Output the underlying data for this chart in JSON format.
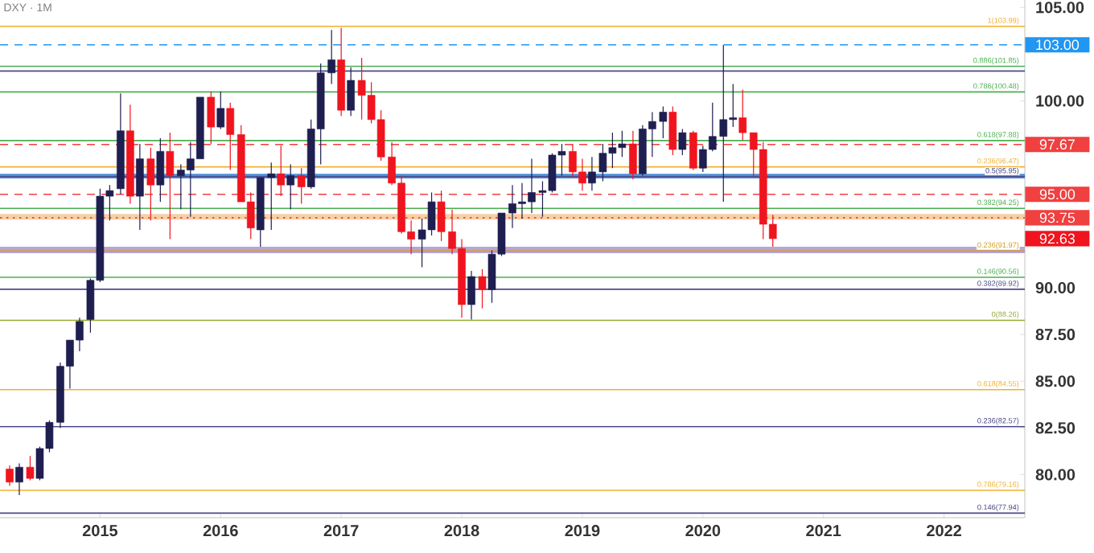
{
  "chart_data": {
    "type": "candlestick",
    "title": "DXY · 1M",
    "x": [
      "2014-04",
      "2014-05",
      "2014-06",
      "2014-07",
      "2014-08",
      "2014-09",
      "2014-10",
      "2014-11",
      "2014-12",
      "2015-01",
      "2015-02",
      "2015-03",
      "2015-04",
      "2015-05",
      "2015-06",
      "2015-07",
      "2015-08",
      "2015-09",
      "2015-10",
      "2015-11",
      "2015-12",
      "2016-01",
      "2016-02",
      "2016-03",
      "2016-04",
      "2016-05",
      "2016-06",
      "2016-07",
      "2016-08",
      "2016-09",
      "2016-10",
      "2016-11",
      "2016-12",
      "2017-01",
      "2017-02",
      "2017-03",
      "2017-04",
      "2017-05",
      "2017-06",
      "2017-07",
      "2017-08",
      "2017-09",
      "2017-10",
      "2017-11",
      "2017-12",
      "2018-01",
      "2018-02",
      "2018-03",
      "2018-04",
      "2018-05",
      "2018-06",
      "2018-07",
      "2018-08",
      "2018-09",
      "2018-10",
      "2018-11",
      "2018-12",
      "2019-01",
      "2019-02",
      "2019-03",
      "2019-04",
      "2019-05",
      "2019-06",
      "2019-07",
      "2019-08",
      "2019-09",
      "2019-10",
      "2019-11",
      "2019-12",
      "2020-01",
      "2020-02",
      "2020-03",
      "2020-04",
      "2020-05",
      "2020-06",
      "2020-07",
      "2020-08"
    ],
    "ohlc": [
      [
        80.3,
        80.5,
        79.4,
        79.6
      ],
      [
        79.6,
        80.6,
        78.9,
        80.4
      ],
      [
        80.4,
        81.0,
        79.7,
        79.8
      ],
      [
        79.8,
        81.5,
        79.7,
        81.4
      ],
      [
        81.4,
        82.9,
        81.2,
        82.8
      ],
      [
        82.8,
        86.0,
        82.5,
        85.8
      ],
      [
        85.8,
        87.2,
        84.6,
        87.2
      ],
      [
        87.2,
        88.4,
        86.6,
        88.2
      ],
      [
        88.3,
        90.5,
        87.6,
        90.4
      ],
      [
        90.4,
        95.3,
        90.3,
        94.9
      ],
      [
        94.9,
        95.5,
        93.6,
        95.2
      ],
      [
        95.3,
        100.4,
        95.0,
        98.4
      ],
      [
        98.4,
        99.8,
        94.5,
        94.9
      ],
      [
        94.9,
        97.7,
        93.1,
        96.9
      ],
      [
        96.9,
        97.5,
        93.6,
        95.5
      ],
      [
        95.5,
        98.0,
        94.6,
        97.3
      ],
      [
        97.3,
        98.3,
        92.6,
        96.0
      ],
      [
        96.0,
        96.6,
        94.2,
        96.3
      ],
      [
        96.3,
        97.8,
        93.8,
        96.9
      ],
      [
        96.9,
        100.2,
        96.9,
        100.2
      ],
      [
        100.2,
        100.5,
        97.7,
        98.6
      ],
      [
        98.6,
        100.5,
        98.5,
        99.6
      ],
      [
        99.6,
        99.9,
        96.3,
        98.2
      ],
      [
        98.2,
        98.7,
        94.6,
        94.6
      ],
      [
        94.6,
        95.1,
        92.6,
        93.2
      ],
      [
        93.1,
        95.9,
        92.2,
        95.9
      ],
      [
        95.9,
        96.7,
        93.1,
        96.1
      ],
      [
        96.1,
        97.6,
        94.9,
        95.5
      ],
      [
        95.5,
        96.6,
        94.2,
        96.0
      ],
      [
        96.0,
        96.4,
        94.5,
        95.4
      ],
      [
        95.4,
        99.0,
        95.3,
        98.5
      ],
      [
        98.5,
        102.0,
        96.6,
        101.5
      ],
      [
        101.5,
        103.8,
        100.9,
        102.2
      ],
      [
        102.2,
        103.9,
        99.2,
        99.5
      ],
      [
        99.5,
        101.8,
        99.2,
        101.1
      ],
      [
        101.1,
        102.3,
        99.0,
        100.3
      ],
      [
        100.3,
        101.0,
        98.8,
        99.0
      ],
      [
        99.0,
        99.5,
        96.8,
        97.0
      ],
      [
        97.0,
        97.8,
        95.5,
        95.6
      ],
      [
        95.6,
        96.0,
        92.9,
        93.0
      ],
      [
        93.0,
        93.6,
        91.8,
        92.6
      ],
      [
        92.6,
        93.7,
        91.1,
        93.1
      ],
      [
        93.1,
        95.1,
        92.8,
        94.6
      ],
      [
        94.6,
        95.2,
        92.5,
        93.0
      ],
      [
        93.0,
        94.2,
        91.8,
        92.1
      ],
      [
        92.1,
        92.6,
        88.4,
        89.1
      ],
      [
        89.1,
        90.9,
        88.3,
        90.6
      ],
      [
        90.6,
        91.0,
        88.9,
        89.9
      ],
      [
        89.9,
        92.0,
        89.2,
        91.8
      ],
      [
        91.8,
        94.0,
        91.7,
        94.0
      ],
      [
        94.0,
        95.5,
        93.2,
        94.5
      ],
      [
        94.5,
        95.6,
        93.7,
        94.6
      ],
      [
        94.6,
        96.9,
        94.0,
        95.1
      ],
      [
        95.1,
        95.7,
        93.8,
        95.2
      ],
      [
        95.2,
        97.2,
        95.1,
        97.1
      ],
      [
        97.1,
        97.7,
        96.0,
        97.3
      ],
      [
        97.3,
        97.7,
        95.9,
        96.2
      ],
      [
        96.2,
        96.9,
        95.2,
        95.6
      ],
      [
        95.6,
        97.0,
        95.2,
        96.2
      ],
      [
        96.2,
        97.7,
        95.7,
        97.2
      ],
      [
        97.2,
        98.3,
        96.4,
        97.5
      ],
      [
        97.5,
        98.4,
        97.0,
        97.7
      ],
      [
        97.7,
        98.4,
        95.8,
        96.1
      ],
      [
        96.1,
        98.7,
        96.0,
        98.5
      ],
      [
        98.5,
        99.4,
        97.0,
        98.9
      ],
      [
        98.9,
        99.7,
        98.0,
        99.4
      ],
      [
        99.4,
        99.7,
        97.1,
        97.4
      ],
      [
        97.4,
        98.5,
        97.1,
        98.3
      ],
      [
        98.3,
        98.4,
        96.3,
        96.4
      ],
      [
        96.4,
        97.6,
        96.2,
        97.4
      ],
      [
        97.4,
        99.9,
        97.3,
        98.1
      ],
      [
        98.1,
        103.0,
        94.6,
        99.0
      ],
      [
        99.0,
        100.9,
        98.6,
        99.1
      ],
      [
        99.1,
        100.6,
        97.9,
        98.3
      ],
      [
        98.3,
        98.3,
        95.9,
        97.4
      ],
      [
        97.4,
        97.8,
        92.6,
        93.4
      ],
      [
        93.4,
        93.9,
        92.2,
        92.63
      ]
    ],
    "xlim": [
      "2014-03",
      "2022-09"
    ],
    "ylim": [
      77.7,
      105.4
    ],
    "xticks": [
      "2015",
      "2016",
      "2017",
      "2018",
      "2019",
      "2020",
      "2021",
      "2022"
    ],
    "yticks": [
      {
        "value": 80,
        "label": "80.00"
      },
      {
        "value": 82.5,
        "label": "82.50"
      },
      {
        "value": 85,
        "label": "85.00"
      },
      {
        "value": 87.5,
        "label": "87.50"
      },
      {
        "value": 90,
        "label": "90.00"
      },
      {
        "value": 100,
        "label": "100.00"
      },
      {
        "value": 105,
        "label": "105.00"
      }
    ],
    "bands": [
      {
        "axis": "y",
        "from": 95.85,
        "to": 96.1,
        "color": "#4a90d9"
      },
      {
        "axis": "y",
        "from": 91.85,
        "to": 92.2,
        "color": "#b8a4d8"
      },
      {
        "axis": "y",
        "from": 93.65,
        "to": 93.95,
        "color": "#f7cfa6"
      }
    ],
    "ref_lines": [
      {
        "axis": "y",
        "value": 103.99,
        "label": "1(103.99)",
        "color": "#f0b030",
        "line_style": "solid"
      },
      {
        "axis": "y",
        "value": 101.85,
        "label": "0.886(101.85)",
        "color": "#4caf50",
        "line_style": "solid"
      },
      {
        "axis": "y",
        "value": 101.6,
        "color": "#4a4a8a",
        "line_style": "solid"
      },
      {
        "axis": "y",
        "value": 100.48,
        "label": "0.786(100.48)",
        "color": "#4caf50",
        "line_style": "solid"
      },
      {
        "axis": "y",
        "value": 97.88,
        "label": "0.618(97.88)",
        "color": "#4caf50",
        "line_style": "solid"
      },
      {
        "axis": "y",
        "value": 96.47,
        "label": "0.236(96.47)",
        "color": "#f0b030",
        "line_style": "solid"
      },
      {
        "axis": "y",
        "value": 95.95,
        "label": "0.5(95.95)",
        "color": "#4a4a8a",
        "line_style": "solid"
      },
      {
        "axis": "y",
        "value": 94.25,
        "label": "0.382(94.25)",
        "color": "#4caf50",
        "line_style": "solid"
      },
      {
        "axis": "y",
        "value": 91.97,
        "label": "0.236(91.97)",
        "color": "#d4a020",
        "line_style": "solid"
      },
      {
        "axis": "y",
        "value": 90.56,
        "label": "0.146(90.56)",
        "color": "#4caf50",
        "line_style": "solid"
      },
      {
        "axis": "y",
        "value": 89.92,
        "label": "0.382(89.92)",
        "color": "#4a4a8a",
        "line_style": "solid"
      },
      {
        "axis": "y",
        "value": 88.26,
        "label": "0(88.26)",
        "color": "#9aa832",
        "line_style": "solid"
      },
      {
        "axis": "y",
        "value": 84.55,
        "label": "0.618(84.55)",
        "color": "#f0b030",
        "line_style": "solid"
      },
      {
        "axis": "y",
        "value": 82.57,
        "label": "0.236(82.57)",
        "color": "#4a4a8a",
        "line_style": "solid"
      },
      {
        "axis": "y",
        "value": 79.16,
        "label": "0.786(79.16)",
        "color": "#f0b030",
        "line_style": "solid"
      },
      {
        "axis": "y",
        "value": 77.94,
        "label": "0.146(77.94)",
        "color": "#4a4a8a",
        "line_style": "solid"
      },
      {
        "axis": "y",
        "value": 103.0,
        "label": "103.00",
        "color": "#2196f3",
        "line_style": "dashed"
      },
      {
        "axis": "y",
        "value": 97.67,
        "label": "97.67",
        "color": "#f04040",
        "line_style": "dashed"
      },
      {
        "axis": "y",
        "value": 95.0,
        "label": "95.00",
        "color": "#f04040",
        "line_style": "dashed"
      },
      {
        "axis": "y",
        "value": 93.75,
        "label": "93.75",
        "color": "#f04040",
        "line_style": "dotted"
      }
    ],
    "annotations": [
      "92.63"
    ]
  }
}
